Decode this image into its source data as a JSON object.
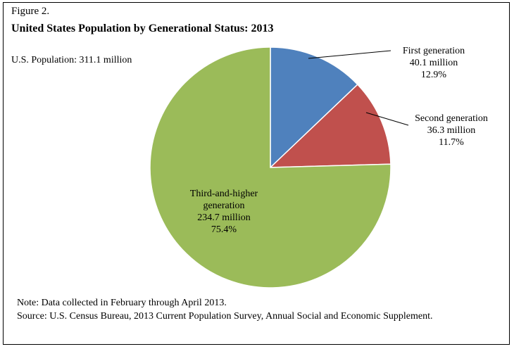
{
  "figure_label": "Figure  2.",
  "title": "United States Population by Generational Status: 2013",
  "total_population": "U.S. Population:  311.1 million",
  "note": "Note: Data collected in February through April 2013.",
  "source": "Source: U.S. Census Bureau, 2013 Current Population Survey, Annual Social and Economic Supplement.",
  "chart_data": {
    "type": "pie",
    "title": "United States Population by Generational Status: 2013",
    "start_angle_deg": 0,
    "direction": "clockwise",
    "slices": [
      {
        "name": "First generation",
        "value_millions": 40.1,
        "percent": 12.9,
        "color": "#4f81bd",
        "label_lines": [
          "First generation",
          "40.1 million",
          "12.9%"
        ]
      },
      {
        "name": "Second generation",
        "value_millions": 36.3,
        "percent": 11.7,
        "color": "#c0504d",
        "label_lines": [
          "Second generation",
          "36.3 million",
          "11.7%"
        ]
      },
      {
        "name": "Third-and-higher generation",
        "value_millions": 234.7,
        "percent": 75.4,
        "color": "#9bbb59",
        "label_lines": [
          "Third-and-higher",
          "generation",
          "234.7 million",
          "75.4%"
        ]
      }
    ]
  }
}
